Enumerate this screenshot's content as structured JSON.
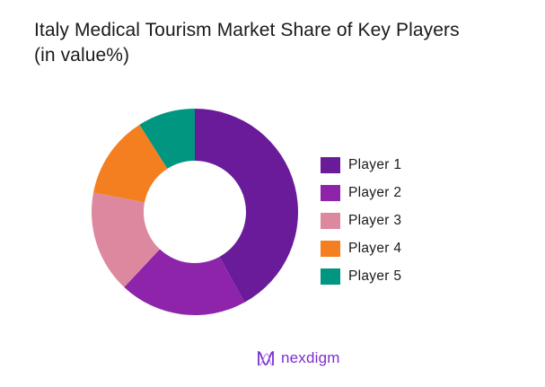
{
  "title_line1": "Italy Medical Tourism Market Share of Key Players",
  "title_line2": "(in value%)",
  "brand": {
    "name": "nexdigm",
    "color": "#7b2fd0",
    "icon": "nexdigm-wave-logo-icon"
  },
  "chart_data": {
    "type": "pie",
    "variant": "donut",
    "title": "Italy Medical Tourism Market Share of Key Players (in value%)",
    "categories": [
      "Player 1",
      "Player 2",
      "Player 3",
      "Player 4",
      "Player 5"
    ],
    "values": [
      42,
      20,
      16,
      13,
      9
    ],
    "colors": [
      "#6a1b9a",
      "#8e24aa",
      "#dc899f",
      "#f47f20",
      "#00967f"
    ],
    "start_angle_deg": 0,
    "direction": "clockwise",
    "legend_position": "right",
    "data_labels": false
  },
  "legend": [
    {
      "label": "Player 1",
      "color": "#6a1b9a"
    },
    {
      "label": "Player 2",
      "color": "#8e24aa"
    },
    {
      "label": "Player 3",
      "color": "#dc899f"
    },
    {
      "label": "Player 4",
      "color": "#f47f20"
    },
    {
      "label": "Player 5",
      "color": "#00967f"
    }
  ]
}
